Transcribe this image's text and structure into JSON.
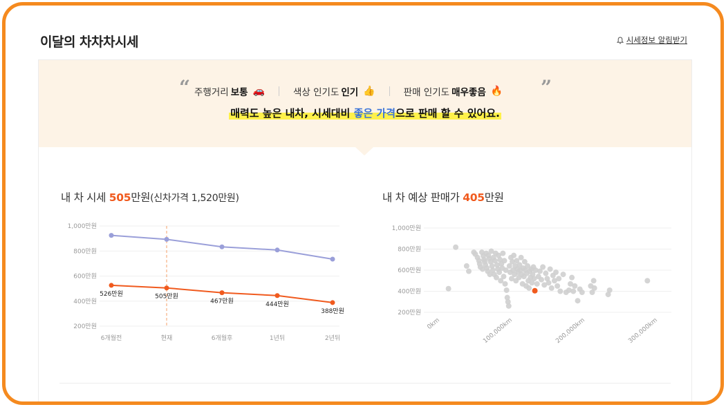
{
  "header": {
    "title": "이달의 차차차시세",
    "alert_label": "시세정보 알림받기"
  },
  "summary": {
    "tags": [
      {
        "label": "주행거리",
        "value": "보통",
        "emoji": "🚗"
      },
      {
        "label": "색상 인기도",
        "value": "인기",
        "emoji": "👍"
      },
      {
        "label": "판매 인기도",
        "value": "매우좋음",
        "emoji": "🔥"
      }
    ],
    "headline_pre": "매력도 높은 내차, 시세대비 ",
    "headline_blue": "좋은 가격",
    "headline_post": "으로 판매 할 수 있어요."
  },
  "left_title": {
    "pre": "내 차 시세 ",
    "value": "505",
    "unit": "만원",
    "suffix": "(신차가격 1,520만원)"
  },
  "right_title": {
    "pre": "내 차 예상 판매가 ",
    "value": "405",
    "unit": "만원"
  },
  "chart_data": [
    {
      "type": "line",
      "categories": [
        "6개월전",
        "현재",
        "6개월후",
        "1년뒤",
        "2년뒤"
      ],
      "ylim": [
        200,
        1000
      ],
      "yticks": [
        "1,000만원",
        "800만원",
        "600만원",
        "400만원",
        "200만원"
      ],
      "ytick_values": [
        1000,
        800,
        600,
        400,
        200
      ],
      "current_index": 1,
      "colors": {
        "upper": "#9a9fd9",
        "lower": "#f05a1e",
        "current_line": "#f5a06a"
      },
      "series": [
        {
          "values": [
            925,
            893,
            833,
            808,
            735
          ]
        },
        {
          "values": [
            526,
            505,
            467,
            444,
            388
          ],
          "labels": [
            "526만원",
            "505만원",
            "467만원",
            "444만원",
            "388만원"
          ]
        }
      ]
    },
    {
      "type": "scatter",
      "xlim": [
        0,
        300000
      ],
      "ylim": [
        200,
        1000
      ],
      "xticks": [
        "0km",
        "100,000km",
        "200,000km",
        "300,000km"
      ],
      "xtick_values": [
        0,
        100000,
        200000,
        300000
      ],
      "yticks": [
        "1,000만원",
        "800만원",
        "600만원",
        "400만원",
        "200만원"
      ],
      "ytick_values": [
        1000,
        800,
        600,
        400,
        200
      ],
      "colors": {
        "points": "#cfcfcf",
        "highlight": "#f05a1e"
      },
      "highlight": {
        "x": 131000,
        "y": 405
      },
      "points": [
        [
          12000,
          425
        ],
        [
          22000,
          818
        ],
        [
          37000,
          640
        ],
        [
          40000,
          590
        ],
        [
          47000,
          770
        ],
        [
          49000,
          752
        ],
        [
          52000,
          720
        ],
        [
          54000,
          690
        ],
        [
          55000,
          660
        ],
        [
          56000,
          630
        ],
        [
          58000,
          770
        ],
        [
          59000,
          610
        ],
        [
          60000,
          735
        ],
        [
          61000,
          700
        ],
        [
          62000,
          680
        ],
        [
          63000,
          650
        ],
        [
          64000,
          760
        ],
        [
          65000,
          620
        ],
        [
          66000,
          590
        ],
        [
          67000,
          740
        ],
        [
          68000,
          710
        ],
        [
          69000,
          560
        ],
        [
          70000,
          680
        ],
        [
          71000,
          780
        ],
        [
          72000,
          640
        ],
        [
          73000,
          600
        ],
        [
          74000,
          720
        ],
        [
          75000,
          560
        ],
        [
          76000,
          690
        ],
        [
          77000,
          760
        ],
        [
          78000,
          530
        ],
        [
          79000,
          650
        ],
        [
          80000,
          610
        ],
        [
          81000,
          740
        ],
        [
          82000,
          580
        ],
        [
          83000,
          700
        ],
        [
          84000,
          500
        ],
        [
          85000,
          660
        ],
        [
          86000,
          620
        ],
        [
          87000,
          760
        ],
        [
          88000,
          540
        ],
        [
          89000,
          690
        ],
        [
          90000,
          470
        ],
        [
          91000,
          600
        ],
        [
          92000,
          410
        ],
        [
          93000,
          340
        ],
        [
          94000,
          300
        ],
        [
          95000,
          260
        ],
        [
          96000,
          640
        ],
        [
          97000,
          580
        ],
        [
          98000,
          720
        ],
        [
          99000,
          520
        ],
        [
          100000,
          680
        ],
        [
          101000,
          600
        ],
        [
          102000,
          740
        ],
        [
          103000,
          560
        ],
        [
          104000,
          640
        ],
        [
          105000,
          500
        ],
        [
          106000,
          690
        ],
        [
          107000,
          610
        ],
        [
          108000,
          580
        ],
        [
          109000,
          530
        ],
        [
          110000,
          650
        ],
        [
          111000,
          600
        ],
        [
          112000,
          720
        ],
        [
          113000,
          560
        ],
        [
          114000,
          470
        ],
        [
          115000,
          620
        ],
        [
          116000,
          540
        ],
        [
          117000,
          680
        ],
        [
          118000,
          600
        ],
        [
          119000,
          450
        ],
        [
          120000,
          570
        ],
        [
          121000,
          640
        ],
        [
          122000,
          500
        ],
        [
          123000,
          430
        ],
        [
          124000,
          590
        ],
        [
          125000,
          530
        ],
        [
          126000,
          610
        ],
        [
          127000,
          480
        ],
        [
          128000,
          560
        ],
        [
          129000,
          630
        ],
        [
          130000,
          520
        ],
        [
          132000,
          600
        ],
        [
          134000,
          470
        ],
        [
          136000,
          540
        ],
        [
          138000,
          590
        ],
        [
          140000,
          510
        ],
        [
          142000,
          630
        ],
        [
          144000,
          460
        ],
        [
          146000,
          570
        ],
        [
          148000,
          520
        ],
        [
          150000,
          480
        ],
        [
          152000,
          610
        ],
        [
          154000,
          430
        ],
        [
          156000,
          550
        ],
        [
          158000,
          500
        ],
        [
          160000,
          580
        ],
        [
          162000,
          450
        ],
        [
          164000,
          520
        ],
        [
          166000,
          400
        ],
        [
          170000,
          560
        ],
        [
          174000,
          390
        ],
        [
          178000,
          410
        ],
        [
          180000,
          470
        ],
        [
          182000,
          530
        ],
        [
          184000,
          400
        ],
        [
          186000,
          450
        ],
        [
          190000,
          310
        ],
        [
          193000,
          420
        ],
        [
          196000,
          390
        ],
        [
          208000,
          450
        ],
        [
          210000,
          390
        ],
        [
          212000,
          500
        ],
        [
          213000,
          430
        ],
        [
          232000,
          370
        ],
        [
          234000,
          410
        ],
        [
          286000,
          500
        ]
      ]
    }
  ]
}
